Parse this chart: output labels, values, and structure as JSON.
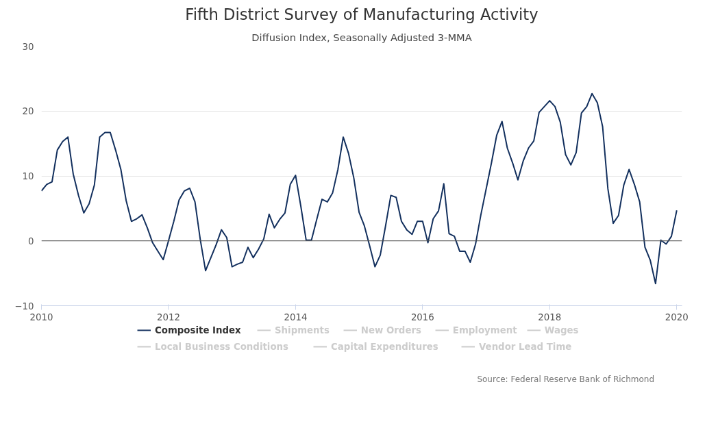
{
  "chart_data": {
    "type": "line",
    "title": "Fifth District Survey of Manufacturing Activity",
    "subtitle": "Diffusion Index, Seasonally Adjusted 3-MMA",
    "annotations": [
      "Source: Federal Reserve Bank of Richmond"
    ],
    "x": [
      "2010-01",
      "2010-02",
      "2010-03",
      "2010-04",
      "2010-05",
      "2010-06",
      "2010-07",
      "2010-08",
      "2010-09",
      "2010-10",
      "2010-11",
      "2010-12",
      "2011-01",
      "2011-02",
      "2011-03",
      "2011-04",
      "2011-05",
      "2011-06",
      "2011-07",
      "2011-08",
      "2011-09",
      "2011-10",
      "2011-11",
      "2011-12",
      "2012-01",
      "2012-02",
      "2012-03",
      "2012-04",
      "2012-05",
      "2012-06",
      "2012-07",
      "2012-08",
      "2012-09",
      "2012-10",
      "2012-11",
      "2012-12",
      "2013-01",
      "2013-02",
      "2013-03",
      "2013-04",
      "2013-05",
      "2013-06",
      "2013-07",
      "2013-08",
      "2013-09",
      "2013-10",
      "2013-11",
      "2013-12",
      "2014-01",
      "2014-02",
      "2014-03",
      "2014-04",
      "2014-05",
      "2014-06",
      "2014-07",
      "2014-08",
      "2014-09",
      "2014-10",
      "2014-11",
      "2014-12",
      "2015-01",
      "2015-02",
      "2015-03",
      "2015-04",
      "2015-05",
      "2015-06",
      "2015-07",
      "2015-08",
      "2015-09",
      "2015-10",
      "2015-11",
      "2015-12",
      "2016-01",
      "2016-02",
      "2016-03",
      "2016-04",
      "2016-05",
      "2016-06",
      "2016-07",
      "2016-08",
      "2016-09",
      "2016-10",
      "2016-11",
      "2016-12",
      "2017-01",
      "2017-02",
      "2017-03",
      "2017-04",
      "2017-05",
      "2017-06",
      "2017-07",
      "2017-08",
      "2017-09",
      "2017-10",
      "2017-11",
      "2017-12",
      "2018-01",
      "2018-02",
      "2018-03",
      "2018-04",
      "2018-05",
      "2018-06",
      "2018-07",
      "2018-08",
      "2018-09",
      "2018-10",
      "2018-11",
      "2018-12",
      "2019-01",
      "2019-02",
      "2019-03",
      "2019-04",
      "2019-05",
      "2019-06",
      "2019-07",
      "2019-08",
      "2019-09",
      "2019-10",
      "2019-11",
      "2019-12",
      "2020-01"
    ],
    "series": [
      {
        "name": "Composite Index",
        "color": "#13305e",
        "values": [
          7.7,
          8.7,
          9.1,
          14,
          15.3,
          16,
          10.3,
          7,
          4.3,
          5.7,
          8.6,
          16,
          16.7,
          16.7,
          14,
          11,
          6.2,
          3,
          3.4,
          4,
          2,
          -0.3,
          -1.6,
          -2.9,
          0,
          3,
          6.3,
          7.7,
          8.1,
          6,
          0.2,
          -4.6,
          -2.6,
          -0.6,
          1.7,
          0.5,
          -4,
          -3.6,
          -3.3,
          -1,
          -2.6,
          -1.3,
          0.3,
          4.1,
          2,
          3.3,
          4.3,
          8.7,
          10.1,
          5.3,
          0.1,
          0.1,
          3.3,
          6.4,
          6,
          7.4,
          11,
          16,
          13.5,
          9.7,
          4.4,
          2.3,
          -0.8,
          -4,
          -2.2,
          2.3,
          7,
          6.7,
          3,
          1.7,
          1,
          3,
          3,
          -0.3,
          3.4,
          4.6,
          8.8,
          1.1,
          0.7,
          -1.6,
          -1.6,
          -3.3,
          -0.5,
          4,
          8,
          12,
          16.3,
          18.4,
          14.3,
          12,
          9.4,
          12.3,
          14.3,
          15.4,
          19.8,
          20.7,
          21.6,
          20.7,
          18.3,
          13.3,
          11.7,
          13.6,
          19.7,
          20.7,
          22.7,
          21.3,
          17.6,
          8,
          2.7,
          3.9,
          8.6,
          11,
          8.7,
          6,
          -1,
          -3,
          -6.6,
          0.1,
          -0.5,
          0.7,
          4.7
        ]
      },
      {
        "name": "Shipments",
        "color": "#cccccc",
        "values": [
          null,
          null,
          null,
          null,
          null,
          null,
          null,
          null,
          null,
          null,
          null,
          null,
          null,
          null,
          null,
          null,
          null,
          null,
          null,
          null,
          null,
          null,
          null,
          null,
          null,
          null,
          null,
          null,
          null,
          null,
          null,
          null,
          null,
          null,
          null,
          null,
          null,
          null,
          null,
          null,
          null,
          null,
          null,
          null,
          null,
          null,
          null,
          null,
          null,
          null,
          null,
          null,
          null,
          null,
          null,
          null,
          null,
          null,
          null,
          null,
          null,
          null,
          null,
          null,
          null,
          null,
          null,
          null,
          null,
          null,
          null,
          null,
          null,
          null,
          null,
          null,
          null,
          null,
          null,
          null,
          null,
          null,
          null,
          null,
          null,
          null,
          null,
          null,
          null,
          null,
          null,
          null,
          null,
          null,
          null,
          null,
          null,
          null,
          null,
          null,
          null,
          null,
          null,
          null,
          null,
          null,
          null,
          null,
          null,
          null,
          null,
          null,
          null,
          null,
          null,
          null,
          null,
          null,
          null,
          null,
          null
        ]
      },
      {
        "name": "New Orders",
        "color": "#cccccc",
        "values": [
          null,
          null,
          null,
          null,
          null,
          null,
          null,
          null,
          null,
          null,
          null,
          null,
          null,
          null,
          null,
          null,
          null,
          null,
          null,
          null,
          null,
          null,
          null,
          null,
          null,
          null,
          null,
          null,
          null,
          null,
          null,
          null,
          null,
          null,
          null,
          null,
          null,
          null,
          null,
          null,
          null,
          null,
          null,
          null,
          null,
          null,
          null,
          null,
          null,
          null,
          null,
          null,
          null,
          null,
          null,
          null,
          null,
          null,
          null,
          null,
          null,
          null,
          null,
          null,
          null,
          null,
          null,
          null,
          null,
          null,
          null,
          null,
          null,
          null,
          null,
          null,
          null,
          null,
          null,
          null,
          null,
          null,
          null,
          null,
          null,
          null,
          null,
          null,
          null,
          null,
          null,
          null,
          null,
          null,
          null,
          null,
          null,
          null,
          null,
          null,
          null,
          null,
          null,
          null,
          null,
          null,
          null,
          null,
          null,
          null,
          null,
          null,
          null,
          null,
          null,
          null,
          null,
          null,
          null,
          null,
          null
        ]
      },
      {
        "name": "Employment",
        "color": "#cccccc",
        "values": [
          null,
          null,
          null,
          null,
          null,
          null,
          null,
          null,
          null,
          null,
          null,
          null,
          null,
          null,
          null,
          null,
          null,
          null,
          null,
          null,
          null,
          null,
          null,
          null,
          null,
          null,
          null,
          null,
          null,
          null,
          null,
          null,
          null,
          null,
          null,
          null,
          null,
          null,
          null,
          null,
          null,
          null,
          null,
          null,
          null,
          null,
          null,
          null,
          null,
          null,
          null,
          null,
          null,
          null,
          null,
          null,
          null,
          null,
          null,
          null,
          null,
          null,
          null,
          null,
          null,
          null,
          null,
          null,
          null,
          null,
          null,
          null,
          null,
          null,
          null,
          null,
          null,
          null,
          null,
          null,
          null,
          null,
          null,
          null,
          null,
          null,
          null,
          null,
          null,
          null,
          null,
          null,
          null,
          null,
          null,
          null,
          null,
          null,
          null,
          null,
          null,
          null,
          null,
          null,
          null,
          null,
          null,
          null,
          null,
          null,
          null,
          null,
          null,
          null,
          null,
          null,
          null,
          null,
          null,
          null,
          null
        ]
      },
      {
        "name": "Wages",
        "color": "#cccccc",
        "values": [
          null,
          null,
          null,
          null,
          null,
          null,
          null,
          null,
          null,
          null,
          null,
          null,
          null,
          null,
          null,
          null,
          null,
          null,
          null,
          null,
          null,
          null,
          null,
          null,
          null,
          null,
          null,
          null,
          null,
          null,
          null,
          null,
          null,
          null,
          null,
          null,
          null,
          null,
          null,
          null,
          null,
          null,
          null,
          null,
          null,
          null,
          null,
          null,
          null,
          null,
          null,
          null,
          null,
          null,
          null,
          null,
          null,
          null,
          null,
          null,
          null,
          null,
          null,
          null,
          null,
          null,
          null,
          null,
          null,
          null,
          null,
          null,
          null,
          null,
          null,
          null,
          null,
          null,
          null,
          null,
          null,
          null,
          null,
          null,
          null,
          null,
          null,
          null,
          null,
          null,
          null,
          null,
          null,
          null,
          null,
          null,
          null,
          null,
          null,
          null,
          null,
          null,
          null,
          null,
          null,
          null,
          null,
          null,
          null,
          null,
          null,
          null,
          null,
          null,
          null,
          null,
          null,
          null,
          null,
          null,
          null
        ]
      },
      {
        "name": "Local Business Conditions",
        "color": "#cccccc",
        "values": [
          null,
          null,
          null,
          null,
          null,
          null,
          null,
          null,
          null,
          null,
          null,
          null,
          null,
          null,
          null,
          null,
          null,
          null,
          null,
          null,
          null,
          null,
          null,
          null,
          null,
          null,
          null,
          null,
          null,
          null,
          null,
          null,
          null,
          null,
          null,
          null,
          null,
          null,
          null,
          null,
          null,
          null,
          null,
          null,
          null,
          null,
          null,
          null,
          null,
          null,
          null,
          null,
          null,
          null,
          null,
          null,
          null,
          null,
          null,
          null,
          null,
          null,
          null,
          null,
          null,
          null,
          null,
          null,
          null,
          null,
          null,
          null,
          null,
          null,
          null,
          null,
          null,
          null,
          null,
          null,
          null,
          null,
          null,
          null,
          null,
          null,
          null,
          null,
          null,
          null,
          null,
          null,
          null,
          null,
          null,
          null,
          null,
          null,
          null,
          null,
          null,
          null,
          null,
          null,
          null,
          null,
          null,
          null,
          null,
          null,
          null,
          null,
          null,
          null,
          null,
          null,
          null,
          null,
          null,
          null,
          null
        ]
      },
      {
        "name": "Capital Expenditures",
        "color": "#cccccc",
        "values": [
          null,
          null,
          null,
          null,
          null,
          null,
          null,
          null,
          null,
          null,
          null,
          null,
          null,
          null,
          null,
          null,
          null,
          null,
          null,
          null,
          null,
          null,
          null,
          null,
          null,
          null,
          null,
          null,
          null,
          null,
          null,
          null,
          null,
          null,
          null,
          null,
          null,
          null,
          null,
          null,
          null,
          null,
          null,
          null,
          null,
          null,
          null,
          null,
          null,
          null,
          null,
          null,
          null,
          null,
          null,
          null,
          null,
          null,
          null,
          null,
          null,
          null,
          null,
          null,
          null,
          null,
          null,
          null,
          null,
          null,
          null,
          null,
          null,
          null,
          null,
          null,
          null,
          null,
          null,
          null,
          null,
          null,
          null,
          null,
          null,
          null,
          null,
          null,
          null,
          null,
          null,
          null,
          null,
          null,
          null,
          null,
          null,
          null,
          null,
          null,
          null,
          null,
          null,
          null,
          null,
          null,
          null,
          null,
          null,
          null,
          null,
          null,
          null,
          null,
          null,
          null,
          null,
          null,
          null,
          null,
          null
        ]
      },
      {
        "name": "Vendor Lead Time",
        "color": "#cccccc",
        "values": [
          null,
          null,
          null,
          null,
          null,
          null,
          null,
          null,
          null,
          null,
          null,
          null,
          null,
          null,
          null,
          null,
          null,
          null,
          null,
          null,
          null,
          null,
          null,
          null,
          null,
          null,
          null,
          null,
          null,
          null,
          null,
          null,
          null,
          null,
          null,
          null,
          null,
          null,
          null,
          null,
          null,
          null,
          null,
          null,
          null,
          null,
          null,
          null,
          null,
          null,
          null,
          null,
          null,
          null,
          null,
          null,
          null,
          null,
          null,
          null,
          null,
          null,
          null,
          null,
          null,
          null,
          null,
          null,
          null,
          null,
          null,
          null,
          null,
          null,
          null,
          null,
          null,
          null,
          null,
          null,
          null,
          null,
          null,
          null,
          null,
          null,
          null,
          null,
          null,
          null,
          null,
          null,
          null,
          null,
          null,
          null,
          null,
          null,
          null,
          null,
          null,
          null,
          null,
          null,
          null,
          null,
          null,
          null,
          null,
          null,
          null,
          null,
          null,
          null,
          null,
          null,
          null,
          null,
          null,
          null,
          null
        ]
      }
    ],
    "xlim": [
      "2010-01",
      "2020-02"
    ],
    "xticks": [
      "2010",
      "2012",
      "2014",
      "2016",
      "2018",
      "2020"
    ],
    "ylim": [
      -10,
      30
    ],
    "yticks": [
      -10,
      0,
      10,
      20,
      30
    ],
    "ref_lines": [
      {
        "axis": "y",
        "value": 0,
        "color": "#555555"
      }
    ],
    "grid": "y",
    "legend": "bottom",
    "marker": "none",
    "line_style": "solid"
  }
}
